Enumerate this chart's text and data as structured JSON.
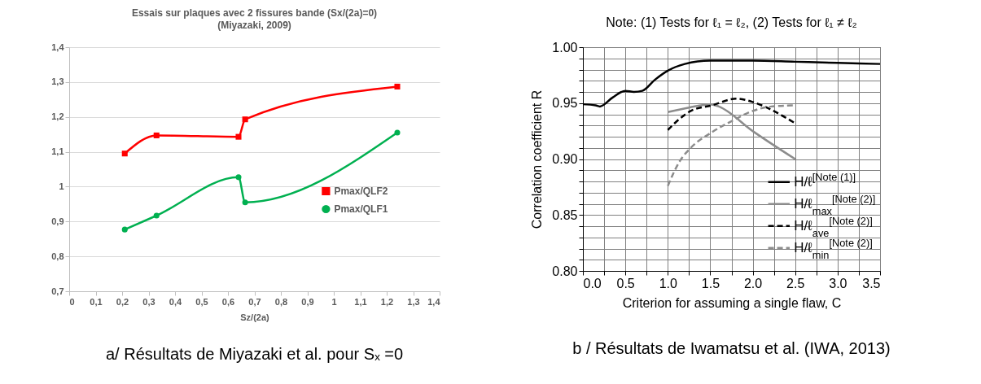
{
  "chart_data": [
    {
      "type": "line",
      "title": "Essais sur plaques avec 2 fissures bande (Sx/(2a)=0)",
      "subtitle": "(Miyazaki, 2009)",
      "xlabel": "Sz/(2a)",
      "xlim": [
        0,
        1.4
      ],
      "xticks": [
        0,
        {
          "value": 0.1,
          "label": "0,1"
        },
        {
          "value": 0.2,
          "label": "0,2"
        },
        {
          "value": 0.3,
          "label": "0,3"
        },
        {
          "value": 0.4,
          "label": "0,4"
        },
        {
          "value": 0.5,
          "label": "0,5"
        },
        {
          "value": 0.6,
          "label": "0,6"
        },
        {
          "value": 0.7,
          "label": "0,7"
        },
        {
          "value": 0.8,
          "label": "0,8"
        },
        {
          "value": 0.9,
          "label": "0,9"
        },
        1,
        {
          "value": 1.1,
          "label": "1,1"
        },
        {
          "value": 1.2,
          "label": "1,2"
        },
        {
          "value": 1.3,
          "label": "1,3"
        },
        {
          "value": 1.4,
          "label": "1,4"
        }
      ],
      "ylim": [
        0.7,
        1.4
      ],
      "yticks": [
        {
          "value": 0.7,
          "label": "0,7"
        },
        {
          "value": 0.8,
          "label": "0,8"
        },
        {
          "value": 0.9,
          "label": "0,9"
        },
        1,
        {
          "value": 1.1,
          "label": "1,1"
        },
        {
          "value": 1.2,
          "label": "1,2"
        },
        {
          "value": 1.3,
          "label": "1,3"
        },
        {
          "value": 1.4,
          "label": "1,4"
        }
      ],
      "grid": "y",
      "legend": "right",
      "series": [
        {
          "name": "Pmax/QLF2",
          "color": "#ff0000",
          "marker": "square",
          "x": [
            0.21,
            0.33,
            0.64,
            0.665,
            1.24
          ],
          "values": [
            1.095,
            1.147,
            1.143,
            1.193,
            1.287
          ]
        },
        {
          "name": "Pmax/QLF1",
          "color": "#00b050",
          "marker": "circle",
          "x": [
            0.21,
            0.33,
            0.64,
            0.665,
            1.24
          ],
          "values": [
            0.877,
            0.917,
            1.027,
            0.955,
            1.155
          ]
        }
      ],
      "annotations": [
        "a/ Résultats de Miyazaki et al. pour Sₓ =0"
      ]
    },
    {
      "type": "line",
      "title": "Note: (1) Tests for ℓ₁ = ℓ₂, (2) Tests for ℓ₁ ≠ ℓ₂",
      "xlabel": "Criterion for assuming a single flaw, C",
      "ylabel": "Correlation coefficient R",
      "xlim": [
        0,
        3.5
      ],
      "xticks": [
        {
          "value": 0,
          "label": "0.0"
        },
        {
          "value": 0.25,
          "label": null
        },
        {
          "value": 0.5,
          "label": "0.5"
        },
        {
          "value": 0.75,
          "label": null
        },
        {
          "value": 1,
          "label": "1.0"
        },
        {
          "value": 1.25,
          "label": null
        },
        {
          "value": 1.5,
          "label": "1.5"
        },
        {
          "value": 1.75,
          "label": null
        },
        {
          "value": 2,
          "label": "2.0"
        },
        {
          "value": 2.25,
          "label": null
        },
        {
          "value": 2.5,
          "label": "2.5"
        },
        {
          "value": 2.75,
          "label": null
        },
        {
          "value": 3,
          "label": "3.0"
        },
        {
          "value": 3.25,
          "label": null
        },
        {
          "value": 3.5,
          "label": "3.5"
        }
      ],
      "ylim": [
        0.8,
        1.0
      ],
      "yticks": [
        {
          "value": 0.8,
          "label": "0.80"
        },
        {
          "value": 0.81,
          "label": null
        },
        {
          "value": 0.82,
          "label": null
        },
        {
          "value": 0.83,
          "label": null
        },
        {
          "value": 0.84,
          "label": null
        },
        {
          "value": 0.85,
          "label": "0.85"
        },
        {
          "value": 0.86,
          "label": null
        },
        {
          "value": 0.87,
          "label": null
        },
        {
          "value": 0.88,
          "label": null
        },
        {
          "value": 0.89,
          "label": null
        },
        {
          "value": 0.9,
          "label": "0.90"
        },
        {
          "value": 0.91,
          "label": null
        },
        {
          "value": 0.92,
          "label": null
        },
        {
          "value": 0.93,
          "label": null
        },
        {
          "value": 0.94,
          "label": null
        },
        {
          "value": 0.95,
          "label": "0.95"
        },
        {
          "value": 0.96,
          "label": null
        },
        {
          "value": 0.97,
          "label": null
        },
        {
          "value": 0.98,
          "label": null
        },
        {
          "value": 0.99,
          "label": null
        },
        {
          "value": 1,
          "label": "1.00"
        }
      ],
      "grid": true,
      "legend": "bottom right",
      "series": [
        {
          "name": "H/ℓ$^{[Note (1)]}$",
          "color": "#000000",
          "line_style": "solid",
          "x": [
            0,
            0.15,
            0.2,
            0.35,
            0.5,
            0.6,
            0.7,
            0.85,
            1.0,
            1.2,
            1.5,
            2.0,
            2.5,
            3.0,
            3.5
          ],
          "values": [
            0.949,
            0.948,
            0.947,
            0.955,
            0.961,
            0.96,
            0.961,
            0.971,
            0.979,
            0.985,
            0.988,
            0.988,
            0.987,
            0.986,
            0.985
          ]
        },
        {
          "name": "H/ℓ$_{max}$$^{[Note (2)]}$",
          "color": "#8c8c8c",
          "line_style": "solid",
          "x": [
            1.0,
            1.25,
            1.5,
            1.6,
            2.0,
            2.5
          ],
          "values": [
            0.942,
            0.946,
            0.949,
            0.947,
            0.925,
            0.9
          ]
        },
        {
          "name": "H/ℓ$_{ave}$$^{[Note (2)]}$",
          "color": "#000000",
          "line_style": "dashed",
          "x": [
            1.0,
            1.14,
            1.27,
            1.52,
            1.81,
            2.0,
            2.22,
            2.5
          ],
          "values": [
            0.926,
            0.936,
            0.943,
            0.948,
            0.954,
            0.951,
            0.944,
            0.932
          ]
        },
        {
          "name": "H/ℓ$_{min}$$^{[Note (2)]}$",
          "color": "#8c8c8c",
          "line_style": "dashed",
          "x": [
            1.0,
            1.14,
            1.27,
            1.52,
            1.78,
            2.0,
            2.22,
            2.5
          ],
          "values": [
            0.876,
            0.898,
            0.91,
            0.924,
            0.935,
            0.943,
            0.947,
            0.948
          ]
        }
      ],
      "annotations": [
        "b / Résultats de Iwamatsu et al. (IWA, 2013)"
      ]
    }
  ]
}
